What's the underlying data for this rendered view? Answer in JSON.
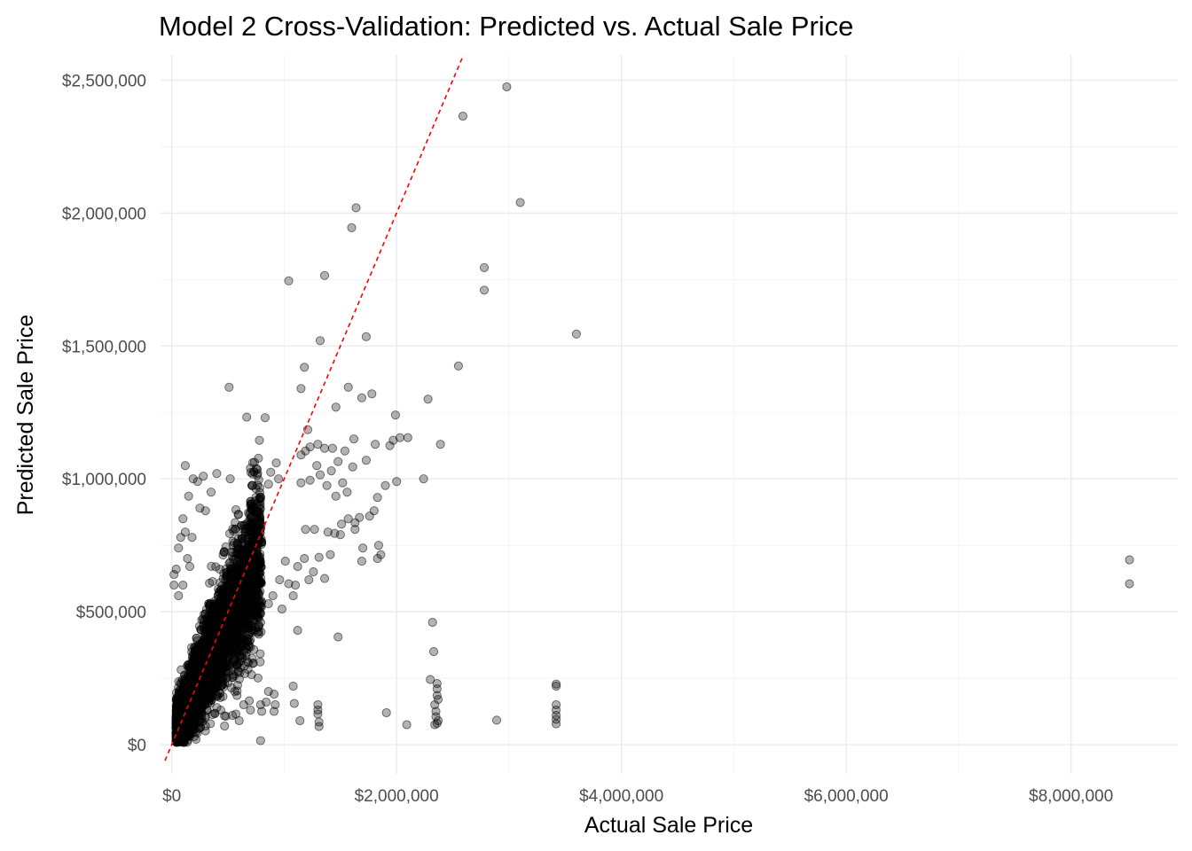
{
  "chart_data": {
    "type": "scatter",
    "title": "Model 2 Cross-Validation: Predicted vs. Actual Sale Price",
    "xlabel": "Actual Sale Price",
    "ylabel": "Predicted Sale Price",
    "xlim": [
      -100000,
      8950000
    ],
    "ylim": [
      -110000,
      2595000
    ],
    "x_ticks": [
      0,
      2000000,
      4000000,
      6000000,
      8000000
    ],
    "x_tick_labels": [
      "$0",
      "$2,000,000",
      "$4,000,000",
      "$6,000,000",
      "$8,000,000"
    ],
    "y_ticks": [
      0,
      500000,
      1000000,
      1500000,
      2000000,
      2500000
    ],
    "y_tick_labels": [
      "$0",
      "$500,000",
      "$1,000,000",
      "$1,500,000",
      "$2,000,000",
      "$2,500,000"
    ],
    "grid": true,
    "point_color": "#000000",
    "point_alpha": 0.3,
    "reference_line": {
      "intercept": 0,
      "slope": 1,
      "color": "#ff0000",
      "style": "dashed"
    },
    "points": [
      [
        2980000,
        2475000
      ],
      [
        2590000,
        2365000
      ],
      [
        3100000,
        2040000
      ],
      [
        1640000,
        2020000
      ],
      [
        1600000,
        1945000
      ],
      [
        2780000,
        1795000
      ],
      [
        2780000,
        1710000
      ],
      [
        1360000,
        1765000
      ],
      [
        1040000,
        1745000
      ],
      [
        3600000,
        1545000
      ],
      [
        1730000,
        1535000
      ],
      [
        1320000,
        1520000
      ],
      [
        2550000,
        1425000
      ],
      [
        1180000,
        1420000
      ],
      [
        1570000,
        1345000
      ],
      [
        1150000,
        1340000
      ],
      [
        510000,
        1345000
      ],
      [
        1780000,
        1320000
      ],
      [
        1690000,
        1305000
      ],
      [
        2280000,
        1300000
      ],
      [
        1460000,
        1270000
      ],
      [
        1990000,
        1240000
      ],
      [
        830000,
        1230000
      ],
      [
        1210000,
        1185000
      ],
      [
        2390000,
        1130000
      ],
      [
        2100000,
        1155000
      ],
      [
        2030000,
        1155000
      ],
      [
        1940000,
        1125000
      ],
      [
        1970000,
        1145000
      ],
      [
        1810000,
        1130000
      ],
      [
        1620000,
        1150000
      ],
      [
        1300000,
        1130000
      ],
      [
        1430000,
        1115000
      ],
      [
        1360000,
        1115000
      ],
      [
        1230000,
        1120000
      ],
      [
        1190000,
        1105000
      ],
      [
        780000,
        1145000
      ],
      [
        1150000,
        1090000
      ],
      [
        1540000,
        1105000
      ],
      [
        1730000,
        1070000
      ],
      [
        1480000,
        1065000
      ],
      [
        1610000,
        1045000
      ],
      [
        1420000,
        1030000
      ],
      [
        1290000,
        1050000
      ],
      [
        1320000,
        1015000
      ],
      [
        2240000,
        1000000
      ],
      [
        2000000,
        990000
      ],
      [
        1900000,
        975000
      ],
      [
        1230000,
        995000
      ],
      [
        1150000,
        985000
      ],
      [
        1520000,
        985000
      ],
      [
        1380000,
        975000
      ],
      [
        1560000,
        950000
      ],
      [
        1460000,
        935000
      ],
      [
        1830000,
        930000
      ],
      [
        1800000,
        880000
      ],
      [
        1760000,
        860000
      ],
      [
        1630000,
        835000
      ],
      [
        1670000,
        855000
      ],
      [
        1570000,
        850000
      ],
      [
        1510000,
        830000
      ],
      [
        1630000,
        810000
      ],
      [
        1450000,
        795000
      ],
      [
        1500000,
        790000
      ],
      [
        1270000,
        810000
      ],
      [
        1390000,
        800000
      ],
      [
        1190000,
        810000
      ],
      [
        1860000,
        715000
      ],
      [
        1830000,
        700000
      ],
      [
        1690000,
        690000
      ],
      [
        1840000,
        750000
      ],
      [
        1700000,
        740000
      ],
      [
        1410000,
        715000
      ],
      [
        1310000,
        705000
      ],
      [
        1180000,
        700000
      ],
      [
        1010000,
        690000
      ],
      [
        1120000,
        670000
      ],
      [
        1260000,
        650000
      ],
      [
        1360000,
        625000
      ],
      [
        1220000,
        620000
      ],
      [
        1100000,
        600000
      ],
      [
        1040000,
        605000
      ],
      [
        960000,
        620000
      ],
      [
        1080000,
        560000
      ],
      [
        900000,
        560000
      ],
      [
        860000,
        530000
      ],
      [
        980000,
        510000
      ],
      [
        1120000,
        430000
      ],
      [
        1480000,
        405000
      ],
      [
        2320000,
        460000
      ],
      [
        2330000,
        350000
      ],
      [
        2300000,
        245000
      ],
      [
        2360000,
        230000
      ],
      [
        2360000,
        210000
      ],
      [
        2360000,
        185000
      ],
      [
        2370000,
        170000
      ],
      [
        2340000,
        150000
      ],
      [
        2350000,
        125000
      ],
      [
        2350000,
        105000
      ],
      [
        2370000,
        90000
      ],
      [
        2340000,
        75000
      ],
      [
        2360000,
        80000
      ],
      [
        2090000,
        75000
      ],
      [
        1910000,
        120000
      ],
      [
        2890000,
        92000
      ],
      [
        3420000,
        228000
      ],
      [
        3420000,
        220000
      ],
      [
        3420000,
        150000
      ],
      [
        3420000,
        130000
      ],
      [
        3420000,
        110000
      ],
      [
        3420000,
        95000
      ],
      [
        3420000,
        78000
      ],
      [
        8520000,
        695000
      ],
      [
        8520000,
        605000
      ],
      [
        1300000,
        150000
      ],
      [
        1300000,
        130000
      ],
      [
        1300000,
        115000
      ],
      [
        1310000,
        85000
      ],
      [
        1310000,
        68000
      ],
      [
        1140000,
        90000
      ],
      [
        1090000,
        155000
      ],
      [
        1080000,
        220000
      ],
      [
        910000,
        190000
      ],
      [
        860000,
        200000
      ],
      [
        840000,
        160000
      ],
      [
        920000,
        150000
      ],
      [
        910000,
        125000
      ],
      [
        790000,
        150000
      ],
      [
        800000,
        125000
      ],
      [
        700000,
        130000
      ],
      [
        640000,
        150000
      ],
      [
        690000,
        165000
      ],
      [
        570000,
        115000
      ],
      [
        600000,
        90000
      ],
      [
        540000,
        110000
      ],
      [
        470000,
        70000
      ],
      [
        790000,
        15000
      ],
      [
        560000,
        200000
      ],
      [
        580000,
        185000
      ],
      [
        120000,
        1050000
      ],
      [
        190000,
        1000000
      ],
      [
        150000,
        935000
      ],
      [
        100000,
        850000
      ],
      [
        40000,
        660000
      ],
      [
        20000,
        640000
      ],
      [
        60000,
        740000
      ],
      [
        80000,
        780000
      ],
      [
        280000,
        1010000
      ],
      [
        230000,
        990000
      ],
      [
        350000,
        950000
      ],
      [
        400000,
        1020000
      ],
      [
        700000,
        1040000
      ],
      [
        760000,
        1035000
      ],
      [
        880000,
        1025000
      ],
      [
        930000,
        1060000
      ],
      [
        950000,
        1000000
      ],
      [
        860000,
        980000
      ],
      [
        520000,
        1000000
      ],
      [
        250000,
        890000
      ],
      [
        300000,
        880000
      ],
      [
        180000,
        780000
      ],
      [
        120000,
        800000
      ],
      [
        140000,
        700000
      ],
      [
        160000,
        670000
      ],
      [
        60000,
        560000
      ],
      [
        20000,
        600000
      ],
      [
        100000,
        600000
      ],
      [
        40000,
        30000
      ],
      [
        80000,
        20000
      ],
      [
        150000,
        40000
      ],
      [
        100000,
        10000
      ],
      [
        200000,
        30000
      ],
      [
        240000,
        60000
      ],
      [
        300000,
        70000
      ]
    ],
    "cloud_seed": 73,
    "cloud_count": 4200
  }
}
